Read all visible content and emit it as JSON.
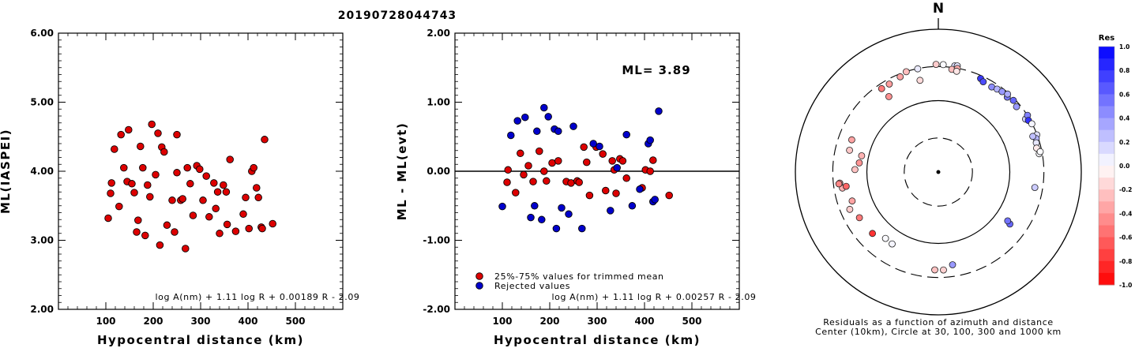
{
  "title": "20190728044743",
  "chart_data": [
    {
      "type": "scatter",
      "title": "",
      "xlabel": "Hypocentral distance (km)",
      "ylabel": "ML(IASPEI)",
      "xlim": [
        0,
        600
      ],
      "ylim": [
        2.0,
        6.0
      ],
      "xticks": [
        "100",
        "200",
        "300",
        "400",
        "500"
      ],
      "yticks": [
        "2.00",
        "3.00",
        "4.00",
        "5.00",
        "6.00"
      ],
      "formula": "log A(nm) + 1.11 log R + 0.00189 R - 2.09",
      "marker_color": "#dd0000",
      "points": [
        [
          105,
          3.32
        ],
        [
          110,
          3.68
        ],
        [
          112,
          3.83
        ],
        [
          118,
          4.32
        ],
        [
          128,
          3.49
        ],
        [
          132,
          4.53
        ],
        [
          138,
          4.05
        ],
        [
          145,
          3.85
        ],
        [
          148,
          4.6
        ],
        [
          155,
          3.82
        ],
        [
          160,
          3.69
        ],
        [
          165,
          3.12
        ],
        [
          168,
          3.29
        ],
        [
          173,
          4.36
        ],
        [
          178,
          4.05
        ],
        [
          183,
          3.07
        ],
        [
          188,
          3.8
        ],
        [
          193,
          3.63
        ],
        [
          197,
          4.68
        ],
        [
          205,
          3.95
        ],
        [
          210,
          4.55
        ],
        [
          214,
          2.93
        ],
        [
          218,
          4.35
        ],
        [
          223,
          4.28
        ],
        [
          229,
          3.22
        ],
        [
          240,
          3.58
        ],
        [
          245,
          3.12
        ],
        [
          250,
          4.53
        ],
        [
          258,
          3.58
        ],
        [
          262,
          3.6
        ],
        [
          268,
          2.88
        ],
        [
          272,
          4.05
        ],
        [
          278,
          3.82
        ],
        [
          284,
          3.36
        ],
        [
          292,
          4.08
        ],
        [
          298,
          4.03
        ],
        [
          305,
          3.58
        ],
        [
          312,
          3.93
        ],
        [
          318,
          3.34
        ],
        [
          328,
          3.83
        ],
        [
          332,
          3.46
        ],
        [
          336,
          3.7
        ],
        [
          340,
          3.1
        ],
        [
          348,
          3.8
        ],
        [
          354,
          3.7
        ],
        [
          362,
          4.17
        ],
        [
          374,
          3.13
        ],
        [
          390,
          3.38
        ],
        [
          395,
          3.62
        ],
        [
          402,
          3.17
        ],
        [
          408,
          4.0
        ],
        [
          412,
          4.05
        ],
        [
          418,
          3.76
        ],
        [
          422,
          3.62
        ],
        [
          428,
          3.19
        ],
        [
          430,
          3.17
        ],
        [
          435,
          4.46
        ],
        [
          452,
          3.24
        ],
        [
          250,
          3.98
        ],
        [
          356,
          3.23
        ]
      ]
    },
    {
      "type": "scatter",
      "title": "",
      "xlabel": "Hypocentral distance (km)",
      "ylabel": "ML - ML(evt)",
      "xlim": [
        0,
        600
      ],
      "ylim": [
        -2.0,
        2.0
      ],
      "xticks": [
        "100",
        "200",
        "300",
        "400",
        "500"
      ],
      "yticks": [
        "-2.00",
        "-1.00",
        "0.00",
        "1.00",
        "2.00"
      ],
      "zero_line": 0,
      "annotation": "ML= 3.89",
      "formula": "log A(nm) + 1.11 log R + 0.00257 R - 2.09",
      "legend": [
        {
          "label": "25%-75% values for trimmed mean",
          "color": "#dd0000"
        },
        {
          "label": "Rejected values",
          "color": "#0000cc"
        }
      ],
      "series": [
        {
          "name": "25%-75% values for trimmed mean",
          "color": "#dd0000",
          "points": [
            [
              112,
              0.02
            ],
            [
              110,
              -0.16
            ],
            [
              128,
              -0.31
            ],
            [
              138,
              0.26
            ],
            [
              145,
              -0.05
            ],
            [
              155,
              0.08
            ],
            [
              165,
              -0.15
            ],
            [
              178,
              0.29
            ],
            [
              188,
              0.0
            ],
            [
              193,
              -0.14
            ],
            [
              205,
              0.12
            ],
            [
              218,
              0.15
            ],
            [
              235,
              -0.15
            ],
            [
              245,
              -0.17
            ],
            [
              258,
              -0.14
            ],
            [
              262,
              -0.16
            ],
            [
              272,
              0.35
            ],
            [
              278,
              0.13
            ],
            [
              284,
              -0.35
            ],
            [
              298,
              0.35
            ],
            [
              312,
              0.25
            ],
            [
              318,
              -0.28
            ],
            [
              332,
              0.15
            ],
            [
              336,
              0.02
            ],
            [
              340,
              -0.32
            ],
            [
              348,
              0.18
            ],
            [
              354,
              0.15
            ],
            [
              362,
              -0.1
            ],
            [
              395,
              -0.24
            ],
            [
              402,
              0.02
            ],
            [
              412,
              0.0
            ],
            [
              418,
              0.16
            ],
            [
              452,
              -0.35
            ]
          ]
        },
        {
          "name": "Rejected values",
          "color": "#0000cc",
          "points": [
            [
              100,
              -0.51
            ],
            [
              118,
              0.52
            ],
            [
              132,
              0.73
            ],
            [
              148,
              0.78
            ],
            [
              160,
              -0.67
            ],
            [
              168,
              -0.5
            ],
            [
              173,
              0.58
            ],
            [
              183,
              -0.7
            ],
            [
              188,
              0.92
            ],
            [
              197,
              0.79
            ],
            [
              210,
              0.61
            ],
            [
              214,
              -0.83
            ],
            [
              218,
              0.58
            ],
            [
              225,
              -0.53
            ],
            [
              240,
              -0.62
            ],
            [
              250,
              0.65
            ],
            [
              268,
              -0.83
            ],
            [
              292,
              0.4
            ],
            [
              305,
              0.36
            ],
            [
              328,
              -0.57
            ],
            [
              342,
              0.05
            ],
            [
              362,
              0.53
            ],
            [
              374,
              -0.5
            ],
            [
              390,
              -0.26
            ],
            [
              408,
              0.4
            ],
            [
              412,
              0.45
            ],
            [
              418,
              -0.44
            ],
            [
              422,
              -0.41
            ],
            [
              430,
              0.87
            ]
          ]
        }
      ]
    },
    {
      "type": "polar-scatter",
      "north_label": "N",
      "caption_1": "Residuals as a function of azimuth and distance",
      "caption_2": "Center (10km), Circle at 30, 100, 300 and 1000 km",
      "colorbar_title": "Res",
      "colorbar_ticks": [
        "1.0",
        "0.8",
        "0.6",
        "0.4",
        "0.2",
        "0.0",
        "-0.2",
        "-0.4",
        "-0.6",
        "-0.8",
        "-1.0"
      ],
      "colorbar_range": [
        -1.0,
        1.0
      ],
      "points": [
        {
          "az": -17.7,
          "dist": 298,
          "res": -0.26
        },
        {
          "az": -11.3,
          "dist": 298,
          "res": 0.08
        },
        {
          "az": -21.8,
          "dist": 273,
          "res": -0.36
        },
        {
          "az": -29.1,
          "dist": 257,
          "res": -0.38
        },
        {
          "az": -34.2,
          "dist": 258,
          "res": -0.52
        },
        {
          "az": -33.2,
          "dist": 183,
          "res": -0.43
        },
        {
          "az": -11.3,
          "dist": 204,
          "res": -0.14
        },
        {
          "az": -1.2,
          "dist": 322,
          "res": -0.2
        },
        {
          "az": 2.6,
          "dist": 320,
          "res": 0.02
        },
        {
          "az": 8.8,
          "dist": 320,
          "res": 0.12
        },
        {
          "az": 10.1,
          "dist": 323,
          "res": 0.1
        },
        {
          "az": 7.5,
          "dist": 282,
          "res": -0.26
        },
        {
          "az": 10.4,
          "dist": 298,
          "res": -0.32
        },
        {
          "az": 10.3,
          "dist": 272,
          "res": -0.1
        },
        {
          "az": 24.3,
          "dist": 273,
          "res": 0.78
        },
        {
          "az": 26.4,
          "dist": 258,
          "res": 0.7
        },
        {
          "az": 32.1,
          "dist": 255,
          "res": 0.45
        },
        {
          "az": 35.3,
          "dist": 265,
          "res": 0.3
        },
        {
          "az": 38.4,
          "dist": 273,
          "res": 0.4
        },
        {
          "az": 42.6,
          "dist": 266,
          "res": 0.52
        },
        {
          "az": 41.6,
          "dist": 288,
          "res": 0.33
        },
        {
          "az": 46.3,
          "dist": 283,
          "res": 0.6
        },
        {
          "az": 50.1,
          "dist": 267,
          "res": 0.4
        },
        {
          "az": 58.7,
          "dist": 268,
          "res": 0.2
        },
        {
          "az": 57.5,
          "dist": 301,
          "res": 0.5
        },
        {
          "az": 60.2,
          "dist": 284,
          "res": 0.8
        },
        {
          "az": 62.7,
          "dist": 297,
          "res": 0.04
        },
        {
          "az": 69.3,
          "dist": 297,
          "res": 0.12
        },
        {
          "az": 71.1,
          "dist": 280,
          "res": 0.3
        },
        {
          "az": 69.3,
          "dist": 259,
          "res": 0.25
        },
        {
          "az": 73.4,
          "dist": 269,
          "res": 0.1
        },
        {
          "az": 76.3,
          "dist": 260,
          "res": -0.08
        },
        {
          "az": 79.7,
          "dist": 272,
          "res": 0.02
        },
        {
          "az": 78.7,
          "dist": 284,
          "res": 0.01
        },
        {
          "az": 99.1,
          "dist": 233,
          "res": 0.2
        },
        {
          "az": 126.0,
          "dist": 173,
          "res": 0.6
        },
        {
          "az": 125.2,
          "dist": 154,
          "res": 0.55
        },
        {
          "az": 171.3,
          "dist": 206,
          "res": 0.4
        },
        {
          "az": 177.0,
          "dist": 236,
          "res": -0.18
        },
        {
          "az": -177.9,
          "dist": 235,
          "res": -0.24
        },
        {
          "az": -147.3,
          "dist": 157,
          "res": 0.04
        },
        {
          "az": -141.5,
          "dist": 154,
          "res": 0.02
        },
        {
          "az": -133.0,
          "dist": 182,
          "res": -0.8
        },
        {
          "az": -120.1,
          "dist": 189,
          "res": -0.52
        },
        {
          "az": -108.6,
          "dist": 187,
          "res": -0.36
        },
        {
          "az": -112.9,
          "dist": 221,
          "res": -0.2
        },
        {
          "az": -99.5,
          "dist": 229,
          "res": -0.3
        },
        {
          "az": -98.8,
          "dist": 202,
          "res": -0.6
        },
        {
          "az": -96.4,
          "dist": 244,
          "res": -0.4
        },
        {
          "az": -96.8,
          "dist": 252,
          "res": -0.48
        },
        {
          "az": -88.3,
          "dist": 147,
          "res": -0.24
        },
        {
          "az": -83.4,
          "dist": 130,
          "res": -0.42
        },
        {
          "az": -78.0,
          "dist": 125,
          "res": -0.3
        },
        {
          "az": -76.2,
          "dist": 190,
          "res": -0.22
        },
        {
          "az": -69.6,
          "dist": 196,
          "res": -0.36
        }
      ]
    }
  ]
}
